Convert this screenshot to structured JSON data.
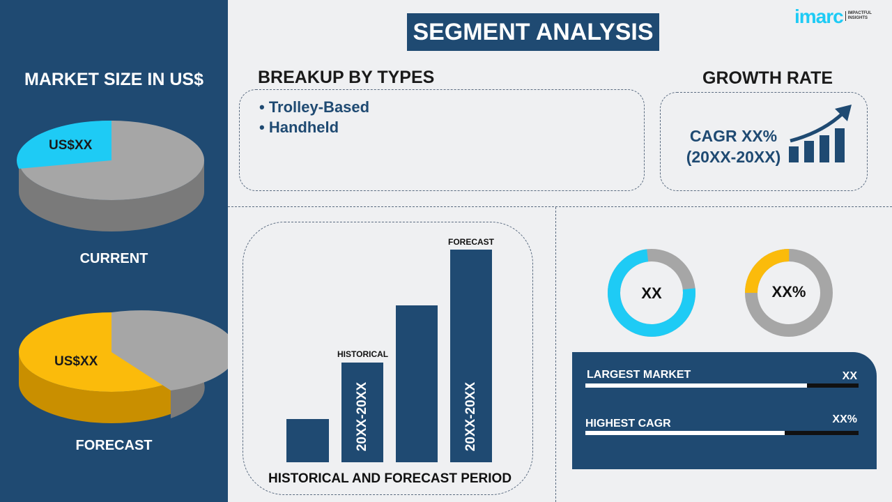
{
  "header": {
    "title": "SEGMENT ANALYSIS",
    "logo": {
      "brand": "imarc",
      "tagline": "IMPACTFUL INSIGHTS"
    }
  },
  "left": {
    "title": "MARKET SIZE IN US$",
    "current": {
      "value": "US$XX",
      "label": "CURRENT",
      "color": "#1ecbf5"
    },
    "forecast": {
      "value": "US$XX",
      "label": "FORECAST",
      "color": "#fbbb0b"
    }
  },
  "breakup": {
    "title": "BREAKUP BY TYPES",
    "items": [
      "• Trolley-Based",
      "• Handheld"
    ]
  },
  "growth": {
    "title": "GROWTH RATE",
    "cagr": "CAGR XX%",
    "period": "(20XX-20XX)"
  },
  "period_chart": {
    "title": "HISTORICAL AND FORECAST PERIOD",
    "historical_label": "HISTORICAL",
    "forecast_label": "FORECAST",
    "historical_period": "20XX-20XX",
    "forecast_period": "20XX-20XX"
  },
  "donuts": [
    {
      "value": "XX",
      "color": "#1ecbf5",
      "fill_fraction": 0.75
    },
    {
      "value": "XX%",
      "color": "#fbbb0b",
      "fill_fraction": 0.25
    }
  ],
  "stats": [
    {
      "label": "LARGEST MARKET",
      "value": "XX",
      "fill_fraction": 0.81
    },
    {
      "label": "HIGHEST CAGR",
      "value": "XX%",
      "fill_fraction": 0.73
    }
  ],
  "colors": {
    "navy": "#1f4a72",
    "cyan": "#1ecbf5",
    "yellow": "#fbbb0b",
    "gray": "#a6a6a6"
  }
}
